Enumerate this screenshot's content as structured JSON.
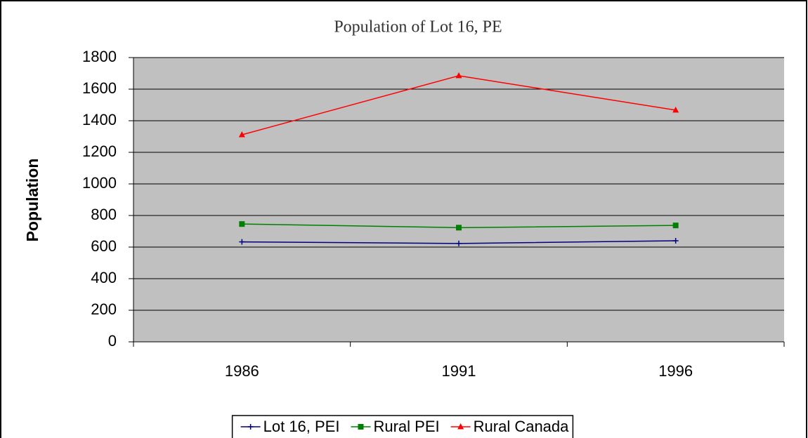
{
  "chart_data": {
    "type": "line",
    "title": "Population of Lot 16, PE",
    "y_label": "Population",
    "categories": [
      "1986",
      "1991",
      "1996"
    ],
    "series": [
      {
        "name": "Lot 16, PEI",
        "color": "#000080",
        "marker": "plus",
        "values": [
          633,
          623,
          640
        ]
      },
      {
        "name": "Rural PEI",
        "color": "#008000",
        "marker": "square",
        "values": [
          746,
          723,
          737
        ]
      },
      {
        "name": "Rural Canada",
        "color": "#ff0000",
        "marker": "triangle",
        "values": [
          1311,
          1685,
          1467
        ]
      }
    ],
    "ylim": [
      0,
      1800
    ],
    "yticks": [
      0,
      200,
      400,
      600,
      800,
      1000,
      1200,
      1400,
      1600,
      1800
    ],
    "grid": true,
    "legend": "bottom"
  }
}
